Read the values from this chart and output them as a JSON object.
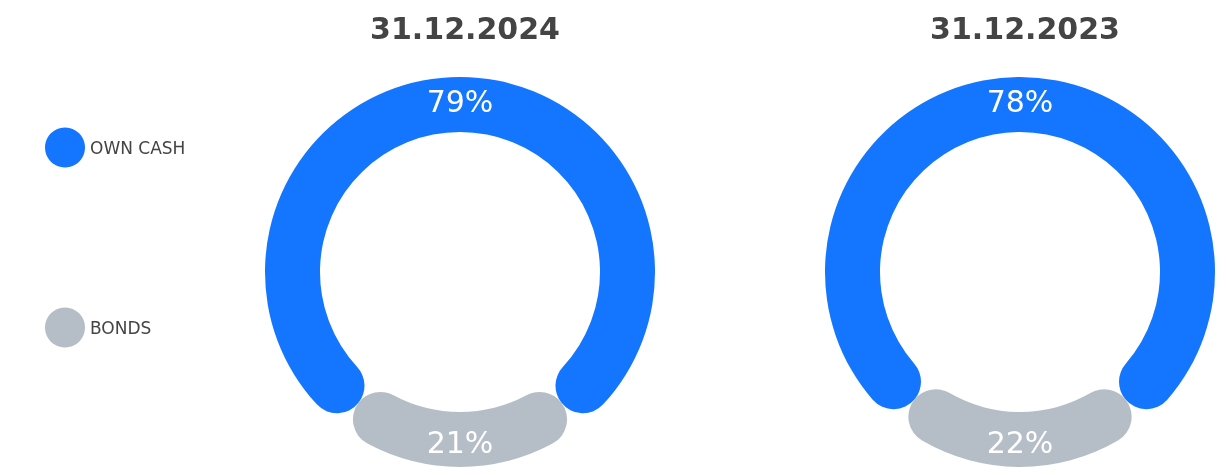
{
  "chart_data": [
    {
      "type": "donut",
      "title": "31.12.2024",
      "categories": [
        "OWN CASH",
        "BONDS"
      ],
      "values": [
        79,
        21
      ],
      "value_labels": [
        "79%",
        "21%"
      ],
      "colors": [
        "#1476fe",
        "#b5bec7"
      ],
      "legend": "left"
    },
    {
      "type": "donut",
      "title": "31.12.2023",
      "categories": [
        null,
        null
      ],
      "values": [
        78,
        22
      ],
      "value_labels": [
        "78%",
        "22%"
      ],
      "colors": [
        "#1476fe",
        "#b5bec7"
      ]
    }
  ]
}
